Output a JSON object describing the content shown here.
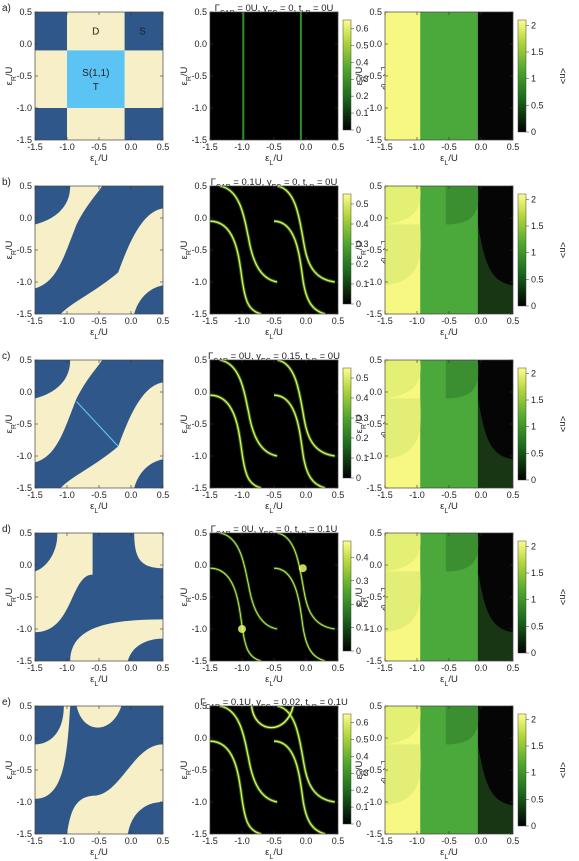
{
  "chart_data": {
    "type": "heatmap",
    "axes": {
      "xlabel": "εL/U",
      "ylabel": "εR/U",
      "xlim": [
        -1.5,
        0.5
      ],
      "ylim": [
        -1.5,
        0.5
      ],
      "ticks": [
        "-1.5",
        "-1.0",
        "-0.5",
        "0.0",
        "0.5"
      ]
    },
    "region_labels": {
      "D": "D",
      "S": "S",
      "S11": "S(1,1)",
      "T": "T"
    },
    "rows": [
      {
        "tag": "a)",
        "params": {
          "gcar": "0U",
          "gec": "0",
          "tlr": "0U"
        },
        "g_scale": {
          "label": "GL (G0)",
          "ticks": [
            "0",
            "0.1",
            "0.2",
            "0.3",
            "0.4",
            "0.5",
            "0.6"
          ],
          "max": 0.65
        },
        "n_scale": {
          "label": "<n>",
          "ticks": [
            "0",
            "0.5",
            "1",
            "1.5",
            "2"
          ],
          "max": 2.1
        }
      },
      {
        "tag": "b)",
        "params": {
          "gcar": "0.1U",
          "gec": "0",
          "tlr": "0U"
        },
        "g_scale": {
          "label": "GL (G0)",
          "ticks": [
            "0",
            "0.1",
            "0.2",
            "0.3",
            "0.4",
            "0.5"
          ],
          "max": 0.55
        },
        "n_scale": {
          "label": "<n>",
          "ticks": [
            "0",
            "0.5",
            "1",
            "1.5",
            "2"
          ],
          "max": 2.1
        }
      },
      {
        "tag": "c)",
        "params": {
          "gcar": "0U",
          "gec": "0.15",
          "tlr": "0U"
        },
        "g_scale": {
          "label": "GL (G0)",
          "ticks": [
            "0",
            "0.1",
            "0.2",
            "0.3",
            "0.4",
            "0.5"
          ],
          "max": 0.55
        },
        "n_scale": {
          "label": "<n>",
          "ticks": [
            "0",
            "0.5",
            "1",
            "1.5",
            "2"
          ],
          "max": 2.1
        }
      },
      {
        "tag": "d)",
        "params": {
          "gcar": "0U",
          "gec": "0",
          "tlr": "0.1U"
        },
        "g_scale": {
          "label": "GL (G0)",
          "ticks": [
            "0",
            "0.1",
            "0.2",
            "0.3",
            "0.4"
          ],
          "max": 0.47
        },
        "n_scale": {
          "label": "<n>",
          "ticks": [
            "0",
            "0.5",
            "1",
            "1.5",
            "2"
          ],
          "max": 2.1
        }
      },
      {
        "tag": "e)",
        "params": {
          "gcar": "0.1U",
          "gec": "0.02",
          "tlr": "0.1U"
        },
        "g_scale": {
          "label": "GL (G0)",
          "ticks": [
            "0",
            "0.1",
            "0.2",
            "0.3",
            "0.4",
            "0.5",
            "0.6"
          ],
          "max": 0.65
        },
        "n_scale": {
          "label": "<n>",
          "ticks": [
            "0",
            "0.5",
            "1",
            "1.5",
            "2"
          ],
          "max": 2.1
        }
      }
    ]
  },
  "colors": {
    "singlet": "#2f578a",
    "doublet": "#f7efc8",
    "triplet": "#5cc4f4",
    "gradient": [
      "#000000",
      "#1c6a1c",
      "#4ea72c",
      "#b2d53a",
      "#fdfd8a"
    ]
  }
}
